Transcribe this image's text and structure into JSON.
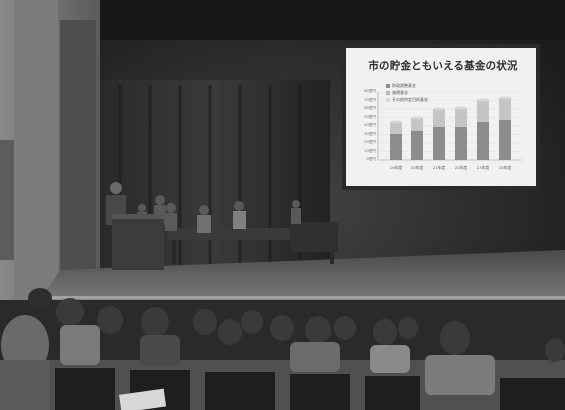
{
  "screen": {
    "title": "市の貯金ともいえる基金の状況",
    "legend": [
      {
        "label": "財政調整基金",
        "color": "#8c8c8c"
      },
      {
        "label": "減債基金",
        "color": "#b8b8b8"
      },
      {
        "label": "その他特定目的基金",
        "color": "#d9d9d9"
      }
    ],
    "y_ticks": [
      "80億円",
      "70億円",
      "60億円",
      "50億円",
      "40億円",
      "30億円",
      "20億円",
      "10億円",
      "0億円"
    ],
    "x_ticks": [
      "19年度",
      "20年度",
      "21年度",
      "22年度",
      "23年度",
      "24年度"
    ]
  },
  "colors": {
    "screen_glow": "#f1f1f1",
    "stage_floor": "#6e6e6e",
    "podium": "#3c3c3c"
  }
}
